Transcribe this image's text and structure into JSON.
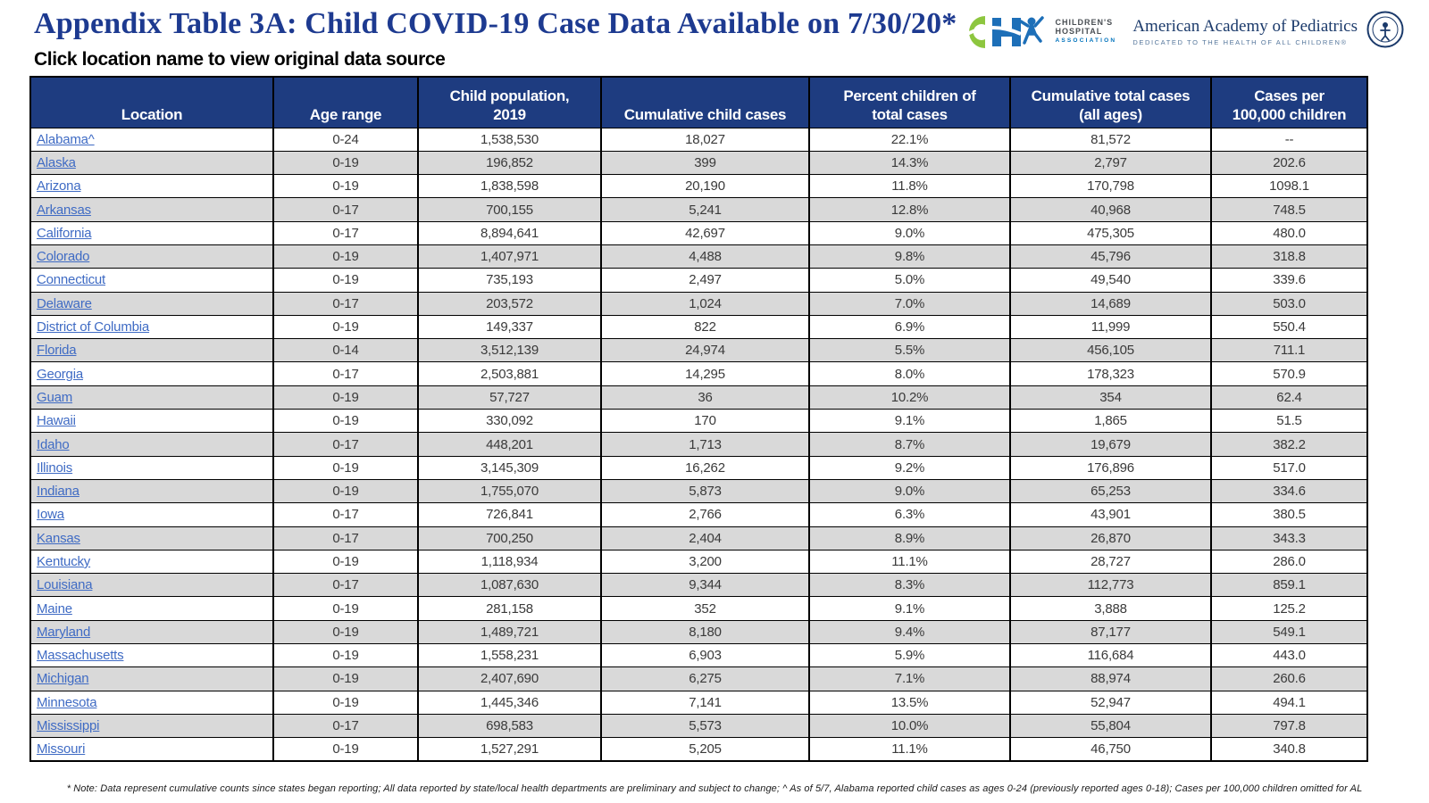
{
  "page": {
    "title": "Appendix Table 3A: Child COVID-19 Case Data Available on 7/30/20*",
    "subtitle": "Click location name to view original data source",
    "footnote": "* Note: Data represent cumulative counts since states began reporting; All data reported by state/local health departments are preliminary and subject to change; ^ As of 5/7, Alabama reported child cases as ages 0-24 (previously reported ages 0-18); Cases per 100,000 children omitted for AL"
  },
  "logos": {
    "cha": {
      "letter_c": "C",
      "letter_h": "H",
      "line1": "CHILDREN'S",
      "line2": "HOSPITAL",
      "line3": "ASSOCIATION"
    },
    "aap": {
      "name": "American Academy of Pediatrics",
      "tagline": "DEDICATED TO THE HEALTH OF ALL CHILDREN®"
    }
  },
  "colors": {
    "title_navy": "#1d3a90",
    "header_bg": "#1e3c80",
    "link_blue": "#3f6bc4",
    "alt_row_gray": "#d9d9d9",
    "cha_green": "#8dc63f",
    "cha_blue": "#0072bc",
    "aap_navy": "#1b3a6b"
  },
  "table": {
    "columns": [
      "Location",
      "Age range",
      "Child population,\n2019",
      "Cumulative child cases",
      "Percent children of\ntotal cases",
      "Cumulative total cases\n(all ages)",
      "Cases per\n100,000 children"
    ],
    "rows": [
      {
        "location": "Alabama^",
        "age_range": "0-24",
        "child_population": "1,538,530",
        "cumulative_child_cases": "18,027",
        "percent_of_total": "22.1%",
        "cumulative_total_cases": "81,572",
        "cases_per_100k": "--"
      },
      {
        "location": "Alaska",
        "age_range": "0-19",
        "child_population": "196,852",
        "cumulative_child_cases": "399",
        "percent_of_total": "14.3%",
        "cumulative_total_cases": "2,797",
        "cases_per_100k": "202.6"
      },
      {
        "location": "Arizona",
        "age_range": "0-19",
        "child_population": "1,838,598",
        "cumulative_child_cases": "20,190",
        "percent_of_total": "11.8%",
        "cumulative_total_cases": "170,798",
        "cases_per_100k": "1098.1"
      },
      {
        "location": "Arkansas",
        "age_range": "0-17",
        "child_population": "700,155",
        "cumulative_child_cases": "5,241",
        "percent_of_total": "12.8%",
        "cumulative_total_cases": "40,968",
        "cases_per_100k": "748.5"
      },
      {
        "location": "California",
        "age_range": "0-17",
        "child_population": "8,894,641",
        "cumulative_child_cases": "42,697",
        "percent_of_total": "9.0%",
        "cumulative_total_cases": "475,305",
        "cases_per_100k": "480.0"
      },
      {
        "location": "Colorado",
        "age_range": "0-19",
        "child_population": "1,407,971",
        "cumulative_child_cases": "4,488",
        "percent_of_total": "9.8%",
        "cumulative_total_cases": "45,796",
        "cases_per_100k": "318.8"
      },
      {
        "location": "Connecticut",
        "age_range": "0-19",
        "child_population": "735,193",
        "cumulative_child_cases": "2,497",
        "percent_of_total": "5.0%",
        "cumulative_total_cases": "49,540",
        "cases_per_100k": "339.6"
      },
      {
        "location": "Delaware",
        "age_range": "0-17",
        "child_population": "203,572",
        "cumulative_child_cases": "1,024",
        "percent_of_total": "7.0%",
        "cumulative_total_cases": "14,689",
        "cases_per_100k": "503.0"
      },
      {
        "location": "District of Columbia",
        "age_range": "0-19",
        "child_population": "149,337",
        "cumulative_child_cases": "822",
        "percent_of_total": "6.9%",
        "cumulative_total_cases": "11,999",
        "cases_per_100k": "550.4"
      },
      {
        "location": "Florida",
        "age_range": "0-14",
        "child_population": "3,512,139",
        "cumulative_child_cases": "24,974",
        "percent_of_total": "5.5%",
        "cumulative_total_cases": "456,105",
        "cases_per_100k": "711.1"
      },
      {
        "location": "Georgia",
        "age_range": "0-17",
        "child_population": "2,503,881",
        "cumulative_child_cases": "14,295",
        "percent_of_total": "8.0%",
        "cumulative_total_cases": "178,323",
        "cases_per_100k": "570.9"
      },
      {
        "location": "Guam",
        "age_range": "0-19",
        "child_population": "57,727",
        "cumulative_child_cases": "36",
        "percent_of_total": "10.2%",
        "cumulative_total_cases": "354",
        "cases_per_100k": "62.4"
      },
      {
        "location": "Hawaii",
        "age_range": "0-19",
        "child_population": "330,092",
        "cumulative_child_cases": "170",
        "percent_of_total": "9.1%",
        "cumulative_total_cases": "1,865",
        "cases_per_100k": "51.5"
      },
      {
        "location": "Idaho",
        "age_range": "0-17",
        "child_population": "448,201",
        "cumulative_child_cases": "1,713",
        "percent_of_total": "8.7%",
        "cumulative_total_cases": "19,679",
        "cases_per_100k": "382.2"
      },
      {
        "location": "Illinois",
        "age_range": "0-19",
        "child_population": "3,145,309",
        "cumulative_child_cases": "16,262",
        "percent_of_total": "9.2%",
        "cumulative_total_cases": "176,896",
        "cases_per_100k": "517.0"
      },
      {
        "location": "Indiana",
        "age_range": "0-19",
        "child_population": "1,755,070",
        "cumulative_child_cases": "5,873",
        "percent_of_total": "9.0%",
        "cumulative_total_cases": "65,253",
        "cases_per_100k": "334.6"
      },
      {
        "location": "Iowa",
        "age_range": "0-17",
        "child_population": "726,841",
        "cumulative_child_cases": "2,766",
        "percent_of_total": "6.3%",
        "cumulative_total_cases": "43,901",
        "cases_per_100k": "380.5"
      },
      {
        "location": "Kansas",
        "age_range": "0-17",
        "child_population": "700,250",
        "cumulative_child_cases": "2,404",
        "percent_of_total": "8.9%",
        "cumulative_total_cases": "26,870",
        "cases_per_100k": "343.3"
      },
      {
        "location": "Kentucky",
        "age_range": "0-19",
        "child_population": "1,118,934",
        "cumulative_child_cases": "3,200",
        "percent_of_total": "11.1%",
        "cumulative_total_cases": "28,727",
        "cases_per_100k": "286.0"
      },
      {
        "location": "Louisiana",
        "age_range": "0-17",
        "child_population": "1,087,630",
        "cumulative_child_cases": "9,344",
        "percent_of_total": "8.3%",
        "cumulative_total_cases": "112,773",
        "cases_per_100k": "859.1"
      },
      {
        "location": "Maine",
        "age_range": "0-19",
        "child_population": "281,158",
        "cumulative_child_cases": "352",
        "percent_of_total": "9.1%",
        "cumulative_total_cases": "3,888",
        "cases_per_100k": "125.2"
      },
      {
        "location": "Maryland",
        "age_range": "0-19",
        "child_population": "1,489,721",
        "cumulative_child_cases": "8,180",
        "percent_of_total": "9.4%",
        "cumulative_total_cases": "87,177",
        "cases_per_100k": "549.1"
      },
      {
        "location": "Massachusetts",
        "age_range": "0-19",
        "child_population": "1,558,231",
        "cumulative_child_cases": "6,903",
        "percent_of_total": "5.9%",
        "cumulative_total_cases": "116,684",
        "cases_per_100k": "443.0"
      },
      {
        "location": "Michigan",
        "age_range": "0-19",
        "child_population": "2,407,690",
        "cumulative_child_cases": "6,275",
        "percent_of_total": "7.1%",
        "cumulative_total_cases": "88,974",
        "cases_per_100k": "260.6"
      },
      {
        "location": "Minnesota",
        "age_range": "0-19",
        "child_population": "1,445,346",
        "cumulative_child_cases": "7,141",
        "percent_of_total": "13.5%",
        "cumulative_total_cases": "52,947",
        "cases_per_100k": "494.1"
      },
      {
        "location": "Mississippi",
        "age_range": "0-17",
        "child_population": "698,583",
        "cumulative_child_cases": "5,573",
        "percent_of_total": "10.0%",
        "cumulative_total_cases": "55,804",
        "cases_per_100k": "797.8"
      },
      {
        "location": "Missouri",
        "age_range": "0-19",
        "child_population": "1,527,291",
        "cumulative_child_cases": "5,205",
        "percent_of_total": "11.1%",
        "cumulative_total_cases": "46,750",
        "cases_per_100k": "340.8"
      }
    ]
  }
}
